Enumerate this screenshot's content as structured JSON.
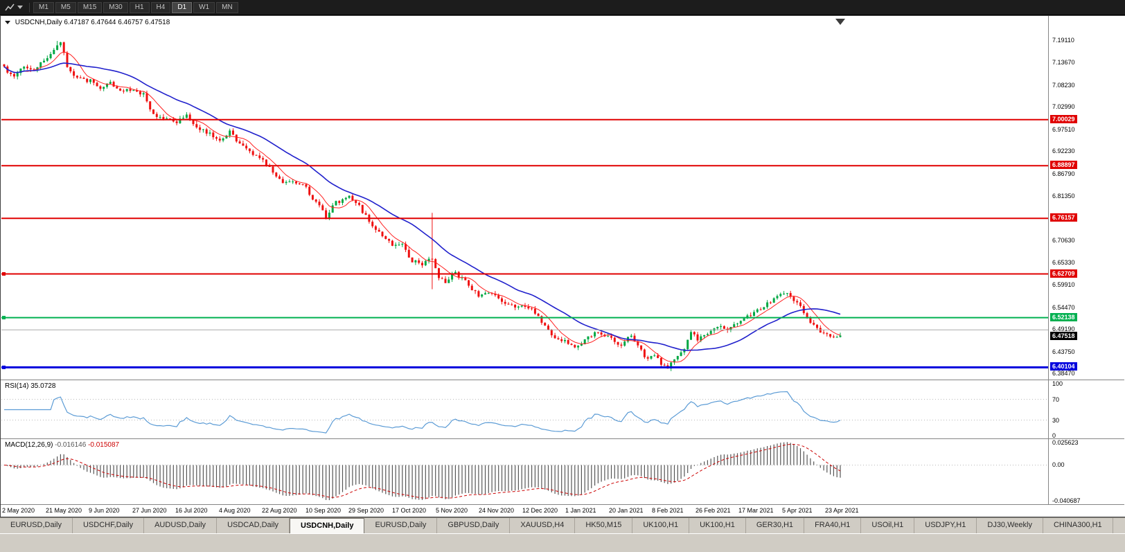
{
  "toolbar": {
    "timeframes": [
      "M1",
      "M5",
      "M15",
      "M30",
      "H1",
      "H4",
      "D1",
      "W1",
      "MN"
    ],
    "active_timeframe": "D1"
  },
  "chart_header": {
    "symbol_label": "USDCNH,Daily",
    "ohlc": "6.47187 6.47644 6.46757 6.47518"
  },
  "tabs": {
    "active_index": 4,
    "items": [
      "EURUSD,Daily",
      "USDCHF,Daily",
      "AUDUSD,Daily",
      "USDCAD,Daily",
      "USDCNH,Daily",
      "EURUSD,Daily",
      "GBPUSD,Daily",
      "XAUUSD,H4",
      "HK50,M15",
      "UK100,H1",
      "UK100,H1",
      "GER30,H1",
      "FRA40,H1",
      "USOil,H1",
      "USDJPY,H1",
      "DJ30,Weekly",
      "CHINA300,H1"
    ]
  },
  "chart_data": {
    "type": "candlestick",
    "title": "USDCNH,Daily",
    "symbol": "USDCNH",
    "timeframe": "Daily",
    "ohlc_display": {
      "open": "6.47187",
      "high": "6.47644",
      "low": "6.46757",
      "close": "6.47518"
    },
    "candles_count": 253,
    "price_axis": {
      "min": 6.375,
      "max": 7.215,
      "labels": [
        "7.19110",
        "7.13670",
        "7.08230",
        "7.02990",
        "6.97510",
        "6.92230",
        "6.86790",
        "6.81350",
        "6.70630",
        "6.65330",
        "6.59910",
        "6.54470",
        "6.49190",
        "6.43750",
        "6.38470"
      ]
    },
    "time_axis_labels": [
      "2 May 2020",
      "21 May 2020",
      "9 Jun 2020",
      "27 Jun 2020",
      "16 Jul 2020",
      "4 Aug 2020",
      "22 Aug 2020",
      "10 Sep 2020",
      "29 Sep 2020",
      "17 Oct 2020",
      "5 Nov 2020",
      "24 Nov 2020",
      "12 Dec 2020",
      "1 Jan 2021",
      "20 Jan 2021",
      "8 Feb 2021",
      "26 Feb 2021",
      "17 Mar 2021",
      "5 Apr 2021",
      "23 Apr 2021"
    ],
    "horizontal_levels": [
      {
        "label": "7.00029",
        "price": 7.00029,
        "color": "#e00000",
        "width": 2,
        "anchor": false
      },
      {
        "label": "6.88897",
        "price": 6.88897,
        "color": "#e00000",
        "width": 2,
        "anchor": false
      },
      {
        "label": "6.76157",
        "price": 6.76157,
        "color": "#e00000",
        "width": 2,
        "anchor": false
      },
      {
        "label": "6.62709",
        "price": 6.62709,
        "color": "#e00000",
        "width": 2,
        "anchor": true
      },
      {
        "label": "6.52138",
        "price": 6.52138,
        "color": "#00b050",
        "width": 2,
        "anchor": true
      },
      {
        "label": "6.40104",
        "price": 6.40104,
        "color": "#0000dd",
        "width": 3,
        "anchor": true
      }
    ],
    "bid_line": {
      "price": 6.4919,
      "color": "#aaaaaa",
      "width": 1
    },
    "current_price_tag": {
      "label": "6.47518",
      "price": 6.47518,
      "color": "#000000"
    },
    "candle_colors": {
      "up": "#00a843",
      "down": "#ef1010"
    },
    "moving_averages": [
      {
        "period": 7,
        "color": "#ff2020",
        "width": 1
      },
      {
        "period": 25,
        "color": "#2020cc",
        "width": 1.6
      }
    ],
    "price_waypoints": [
      [
        0,
        7.125
      ],
      [
        3,
        7.1
      ],
      [
        6,
        7.13
      ],
      [
        9,
        7.115
      ],
      [
        12,
        7.145
      ],
      [
        15,
        7.17
      ],
      [
        17,
        7.185
      ],
      [
        19,
        7.13
      ],
      [
        22,
        7.1
      ],
      [
        26,
        7.095
      ],
      [
        29,
        7.07
      ],
      [
        32,
        7.09
      ],
      [
        35,
        7.07
      ],
      [
        39,
        7.075
      ],
      [
        42,
        7.06
      ],
      [
        45,
        7.01
      ],
      [
        48,
        7.005
      ],
      [
        52,
        6.995
      ],
      [
        55,
        7.015
      ],
      [
        58,
        6.98
      ],
      [
        62,
        6.965
      ],
      [
        65,
        6.955
      ],
      [
        68,
        6.97
      ],
      [
        71,
        6.94
      ],
      [
        74,
        6.925
      ],
      [
        78,
        6.9
      ],
      [
        81,
        6.875
      ],
      [
        84,
        6.85
      ],
      [
        87,
        6.855
      ],
      [
        91,
        6.835
      ],
      [
        94,
        6.8
      ],
      [
        97,
        6.765
      ],
      [
        100,
        6.8
      ],
      [
        104,
        6.815
      ],
      [
        107,
        6.79
      ],
      [
        110,
        6.755
      ],
      [
        113,
        6.73
      ],
      [
        117,
        6.7
      ],
      [
        120,
        6.695
      ],
      [
        123,
        6.66
      ],
      [
        126,
        6.65
      ],
      [
        129,
        6.665
      ],
      [
        131,
        6.62
      ],
      [
        133,
        6.61
      ],
      [
        136,
        6.63
      ],
      [
        140,
        6.6
      ],
      [
        143,
        6.575
      ],
      [
        146,
        6.585
      ],
      [
        150,
        6.56
      ],
      [
        153,
        6.55
      ],
      [
        157,
        6.545
      ],
      [
        160,
        6.535
      ],
      [
        163,
        6.5
      ],
      [
        166,
        6.47
      ],
      [
        170,
        6.46
      ],
      [
        173,
        6.45
      ],
      [
        176,
        6.475
      ],
      [
        179,
        6.485
      ],
      [
        183,
        6.47
      ],
      [
        186,
        6.455
      ],
      [
        189,
        6.48
      ],
      [
        192,
        6.44
      ],
      [
        194,
        6.42
      ],
      [
        196,
        6.43
      ],
      [
        198,
        6.41
      ],
      [
        200,
        6.403
      ],
      [
        202,
        6.42
      ],
      [
        205,
        6.45
      ],
      [
        207,
        6.49
      ],
      [
        209,
        6.47
      ],
      [
        212,
        6.48
      ],
      [
        215,
        6.5
      ],
      [
        218,
        6.495
      ],
      [
        222,
        6.51
      ],
      [
        225,
        6.53
      ],
      [
        228,
        6.545
      ],
      [
        231,
        6.56
      ],
      [
        234,
        6.575
      ],
      [
        236,
        6.58
      ],
      [
        238,
        6.565
      ],
      [
        240,
        6.55
      ],
      [
        242,
        6.52
      ],
      [
        244,
        6.5
      ],
      [
        246,
        6.49
      ],
      [
        248,
        6.48
      ],
      [
        250,
        6.47
      ],
      [
        252,
        6.475
      ]
    ],
    "wick_events": [
      {
        "i": 16,
        "high": 7.191
      },
      {
        "i": 129,
        "high": 6.775,
        "low": 6.59
      },
      {
        "i": 200,
        "low": 6.401
      }
    ],
    "indicators": {
      "rsi": {
        "label": "RSI(14)",
        "value_label": "35.0728",
        "period": 14,
        "line_color": "#5b9bd5",
        "axis_labels": [
          {
            "text": "100",
            "value": 100
          },
          {
            "text": "70",
            "value": 70
          },
          {
            "text": "30",
            "value": 30
          },
          {
            "text": "0",
            "value": 0
          }
        ],
        "dotted_levels": [
          70,
          30
        ]
      },
      "macd": {
        "label": "MACD(12,26,9)",
        "main_value_label": "-0.016146",
        "signal_value_label": "-0.015087",
        "fast": 12,
        "slow": 26,
        "signal": 9,
        "histogram_color": "#555555",
        "signal_color": "#cc0000",
        "axis_labels": [
          {
            "text": "0.025623",
            "value": 0.025623
          },
          {
            "text": "0.00",
            "value": 0
          },
          {
            "text": "-0.040687",
            "value": -0.040687
          }
        ],
        "range": [
          -0.040687,
          0.025623
        ]
      }
    }
  }
}
